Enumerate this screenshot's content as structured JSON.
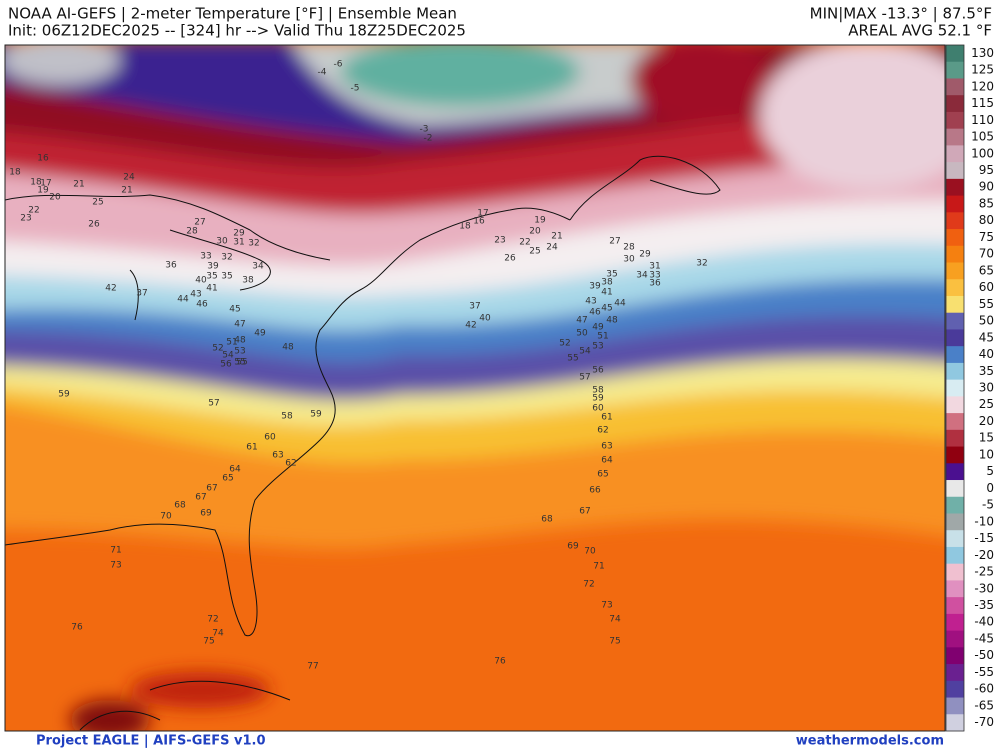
{
  "header": {
    "title": "NOAA AI-GEFS | 2-meter Temperature [°F] | Ensemble Mean",
    "subtitle": "Init: 06Z12DEC2025 -- [324] hr --> Valid Thu 18Z25DEC2025",
    "minmax": "MIN|MAX -13.3° | 87.5°F",
    "areal_avg": "AREAL AVG 52.1 °F"
  },
  "colorbar": {
    "labels": [
      130,
      125,
      120,
      115,
      110,
      105,
      100,
      95,
      90,
      85,
      80,
      75,
      70,
      65,
      60,
      55,
      50,
      45,
      40,
      35,
      30,
      25,
      20,
      15,
      10,
      5,
      0,
      -5,
      -10,
      -15,
      -20,
      -25,
      -30,
      -35,
      -40,
      -45,
      -50,
      -55,
      -60,
      -65,
      -70
    ],
    "colors": [
      "#3f7f6f",
      "#5a9a88",
      "#a05a6a",
      "#8a2a3a",
      "#a04050",
      "#b87888",
      "#d0a8b8",
      "#c8b8c0",
      "#9a1020",
      "#c81818",
      "#e03a1a",
      "#f06010",
      "#f58010",
      "#f8a020",
      "#fac040",
      "#f8e070",
      "#6060b0",
      "#4a3a9a",
      "#4a80c8",
      "#90c8e0",
      "#d8ecf2",
      "#f2d8e0",
      "#d07080",
      "#b03040",
      "#900010",
      "#4b1090",
      "#e8e8e8",
      "#70b0a8",
      "#a0a8a8",
      "#c8e0e8",
      "#90c8e0",
      "#f0c0d0",
      "#e090c0",
      "#d050a0",
      "#c02090",
      "#a01080",
      "#800070",
      "#6a2090",
      "#5040a0",
      "#9090c0",
      "#d0d0e0"
    ]
  },
  "map_labels": [
    -6,
    -4,
    -5,
    -3,
    -2,
    16,
    18,
    17,
    18,
    19,
    20,
    21,
    24,
    21,
    25,
    22,
    23,
    26,
    27,
    28,
    29,
    30,
    31,
    32,
    33,
    32,
    36,
    34,
    39,
    35,
    35,
    40,
    38,
    42,
    37,
    41,
    43,
    44,
    46,
    45,
    47,
    49,
    48,
    51,
    52,
    53,
    54,
    55,
    48,
    56,
    55,
    59,
    57,
    58,
    59,
    60,
    61,
    63,
    62,
    64,
    65,
    67,
    67,
    68,
    69,
    70,
    71,
    73,
    76,
    72,
    74,
    75,
    77,
    76,
    17,
    16,
    18,
    19,
    20,
    21,
    23,
    22,
    24,
    25,
    26,
    27,
    28,
    29,
    30,
    31,
    32,
    34,
    33,
    35,
    36,
    38,
    39,
    41,
    37,
    40,
    42,
    43,
    44,
    45,
    46,
    47,
    48,
    49,
    50,
    51,
    52,
    53,
    54,
    55,
    56,
    57,
    58,
    59,
    60,
    61,
    62,
    63,
    64,
    65,
    66,
    67,
    68,
    69,
    70,
    71,
    72,
    73,
    74,
    75
  ],
  "footer": {
    "left": "Project EAGLE | AIFS-GEFS v1.0",
    "right": "weathermodels.com"
  }
}
